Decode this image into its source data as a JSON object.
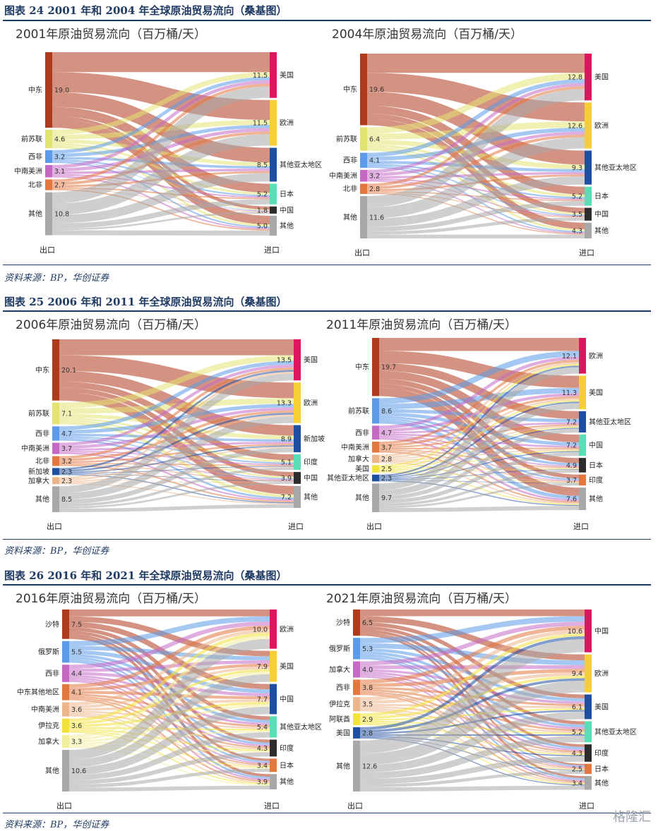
{
  "figures": [
    {
      "title": "图表 24   2001 年和 2004 年全球原油贸易流向（桑基图）",
      "source": "资料来源：BP，华创证券"
    },
    {
      "title": "图表 25   2006 年和 2011 年全球原油贸易流向（桑基图）",
      "source": "资料来源：BP，华创证券"
    },
    {
      "title": "图表 26   2016 年和 2021 年全球原油贸易流向（桑基图）",
      "source": "资料来源：BP，华创证券"
    }
  ],
  "watermark": "格隆汇",
  "chart_data": [
    {
      "type": "sankey",
      "title": "2001年原油贸易流向（百万桶/天）",
      "xlabel_left": "出口",
      "xlabel_right": "进口",
      "sources": [
        {
          "name": "中东",
          "value": 19.0,
          "color": "#b03a1c"
        },
        {
          "name": "前苏联",
          "value": 4.6,
          "color": "#e3e372"
        },
        {
          "name": "西非",
          "value": 3.2,
          "color": "#5b9bea"
        },
        {
          "name": "中南美洲",
          "value": 3.1,
          "color": "#c569c4"
        },
        {
          "name": "北非",
          "value": 2.7,
          "color": "#e2773f"
        },
        {
          "name": "其他",
          "value": 10.8,
          "color": "#a8a8a8"
        }
      ],
      "targets": [
        {
          "name": "美国",
          "value": 11.5,
          "color": "#e0155f"
        },
        {
          "name": "欧洲",
          "value": 11.5,
          "color": "#f5cf34"
        },
        {
          "name": "其他亚太地区",
          "value": 8.5,
          "color": "#1f4fa0"
        },
        {
          "name": "日本",
          "value": 5.2,
          "color": "#59dfb6"
        },
        {
          "name": "中国",
          "value": 1.8,
          "color": "#2c2c2c"
        },
        {
          "name": "其他",
          "value": 5.0,
          "color": "#a8a8a8"
        }
      ]
    },
    {
      "type": "sankey",
      "title": "2004年原油贸易流向（百万桶/天）",
      "xlabel_left": "出口",
      "xlabel_right": "进口",
      "sources": [
        {
          "name": "中东",
          "value": 19.6,
          "color": "#b03a1c"
        },
        {
          "name": "前苏联",
          "value": 6.4,
          "color": "#e3e372"
        },
        {
          "name": "西非",
          "value": 4.1,
          "color": "#5b9bea"
        },
        {
          "name": "中南美洲",
          "value": 3.2,
          "color": "#c569c4"
        },
        {
          "name": "北非",
          "value": 2.8,
          "color": "#e2773f"
        },
        {
          "name": "其他",
          "value": 11.6,
          "color": "#a8a8a8"
        }
      ],
      "targets": [
        {
          "name": "美国",
          "value": 12.8,
          "color": "#e0155f"
        },
        {
          "name": "欧洲",
          "value": 12.6,
          "color": "#f5cf34"
        },
        {
          "name": "其他亚太地区",
          "value": 9.3,
          "color": "#1f4fa0"
        },
        {
          "name": "日本",
          "value": 5.2,
          "color": "#59dfb6"
        },
        {
          "name": "中国",
          "value": 3.5,
          "color": "#2c2c2c"
        },
        {
          "name": "其他",
          "value": 4.3,
          "color": "#a8a8a8"
        }
      ]
    },
    {
      "type": "sankey",
      "title": "2006年原油贸易流向（百万桶/天）",
      "xlabel_left": "出口",
      "xlabel_right": "进口",
      "sources": [
        {
          "name": "中东",
          "value": 20.1,
          "color": "#b03a1c"
        },
        {
          "name": "前苏联",
          "value": 7.1,
          "color": "#e3e372"
        },
        {
          "name": "西非",
          "value": 4.7,
          "color": "#5b9bea"
        },
        {
          "name": "中南美洲",
          "value": 3.7,
          "color": "#c569c4"
        },
        {
          "name": "北非",
          "value": 3.2,
          "color": "#e2773f"
        },
        {
          "name": "新加坡",
          "value": 2.3,
          "color": "#1f4fa0"
        },
        {
          "name": "加拿大",
          "value": 2.3,
          "color": "#ecb58a"
        },
        {
          "name": "其他",
          "value": 8.5,
          "color": "#a8a8a8"
        }
      ],
      "targets": [
        {
          "name": "美国",
          "value": 13.5,
          "color": "#e0155f"
        },
        {
          "name": "欧洲",
          "value": 13.3,
          "color": "#f5cf34"
        },
        {
          "name": "新加坡",
          "value": 8.9,
          "color": "#1f4fa0"
        },
        {
          "name": "印度",
          "value": 5.1,
          "color": "#59dfb6"
        },
        {
          "name": "中国",
          "value": 3.9,
          "color": "#2c2c2c"
        },
        {
          "name": "其他",
          "value": 7.2,
          "color": "#a8a8a8"
        }
      ]
    },
    {
      "type": "sankey",
      "title": "2011年原油贸易流向（百万桶/天）",
      "xlabel_left": "出口",
      "xlabel_right": "进口",
      "sources": [
        {
          "name": "中东",
          "value": 19.7,
          "color": "#b03a1c"
        },
        {
          "name": "前苏联",
          "value": 8.6,
          "color": "#5b9bea"
        },
        {
          "name": "西非",
          "value": 4.7,
          "color": "#c569c4"
        },
        {
          "name": "中南美洲",
          "value": 3.7,
          "color": "#e2773f"
        },
        {
          "name": "加拿大",
          "value": 2.8,
          "color": "#ecb58a"
        },
        {
          "name": "美国",
          "value": 2.5,
          "color": "#f2e23a"
        },
        {
          "name": "其他亚太地区",
          "value": 2.3,
          "color": "#1f4fa0"
        },
        {
          "name": "其他",
          "value": 9.7,
          "color": "#a8a8a8"
        }
      ],
      "targets": [
        {
          "name": "欧洲",
          "value": 12.1,
          "color": "#e0155f"
        },
        {
          "name": "美国",
          "value": 11.3,
          "color": "#f5cf34"
        },
        {
          "name": "其他亚太地区",
          "value": 7.2,
          "color": "#1f4fa0"
        },
        {
          "name": "中国",
          "value": 7.2,
          "color": "#59dfb6"
        },
        {
          "name": "日本",
          "value": 4.9,
          "color": "#2c2c2c"
        },
        {
          "name": "印度",
          "value": 3.7,
          "color": "#e2773f"
        },
        {
          "name": "其他",
          "value": 7.6,
          "color": "#a8a8a8"
        }
      ]
    },
    {
      "type": "sankey",
      "title": "2016年原油贸易流向（百万桶/天）",
      "xlabel_left": "出口",
      "xlabel_right": "进口",
      "sources": [
        {
          "name": "沙特",
          "value": 7.5,
          "color": "#b03a1c"
        },
        {
          "name": "俄罗斯",
          "value": 5.5,
          "color": "#5b9bea"
        },
        {
          "name": "西非",
          "value": 4.4,
          "color": "#c569c4"
        },
        {
          "name": "中东其他地区",
          "value": 4.1,
          "color": "#e2773f"
        },
        {
          "name": "中南美洲",
          "value": 3.6,
          "color": "#ecb58a"
        },
        {
          "name": "伊拉克",
          "value": 3.6,
          "color": "#f2e23a"
        },
        {
          "name": "加拿大",
          "value": 3.3,
          "color": "#f3ee9a"
        },
        {
          "name": "其他",
          "value": 10.6,
          "color": "#a8a8a8"
        }
      ],
      "targets": [
        {
          "name": "欧洲",
          "value": 10.0,
          "color": "#e0155f"
        },
        {
          "name": "美国",
          "value": 7.9,
          "color": "#f5cf34"
        },
        {
          "name": "中国",
          "value": 7.7,
          "color": "#1f4fa0"
        },
        {
          "name": "其他亚太地区",
          "value": 5.4,
          "color": "#59dfb6"
        },
        {
          "name": "印度",
          "value": 4.3,
          "color": "#2c2c2c"
        },
        {
          "name": "日本",
          "value": 3.4,
          "color": "#e2773f"
        },
        {
          "name": "其他",
          "value": 3.9,
          "color": "#a8a8a8"
        }
      ]
    },
    {
      "type": "sankey",
      "title": "2021年原油贸易流向（百万桶/天）",
      "xlabel_left": "出口",
      "xlabel_right": "进口",
      "sources": [
        {
          "name": "沙特",
          "value": 6.5,
          "color": "#b03a1c"
        },
        {
          "name": "俄罗斯",
          "value": 5.3,
          "color": "#5b9bea"
        },
        {
          "name": "加拿大",
          "value": 4.0,
          "color": "#c569c4"
        },
        {
          "name": "西非",
          "value": 3.8,
          "color": "#e2773f"
        },
        {
          "name": "伊拉克",
          "value": 3.5,
          "color": "#ecb58a"
        },
        {
          "name": "阿联酋",
          "value": 2.9,
          "color": "#f2e23a"
        },
        {
          "name": "美国",
          "value": 2.8,
          "color": "#1f4fa0"
        },
        {
          "name": "其他",
          "value": 12.6,
          "color": "#a8a8a8"
        }
      ],
      "targets": [
        {
          "name": "中国",
          "value": 10.6,
          "color": "#e0155f"
        },
        {
          "name": "欧洲",
          "value": 9.4,
          "color": "#f5cf34"
        },
        {
          "name": "美国",
          "value": 6.1,
          "color": "#1f4fa0"
        },
        {
          "name": "其他亚太地区",
          "value": 5.2,
          "color": "#59dfb6"
        },
        {
          "name": "印度",
          "value": 4.3,
          "color": "#2c2c2c"
        },
        {
          "name": "日本",
          "value": 2.5,
          "color": "#e2773f"
        },
        {
          "name": "其他",
          "value": 3.4,
          "color": "#a8a8a8"
        }
      ]
    }
  ]
}
